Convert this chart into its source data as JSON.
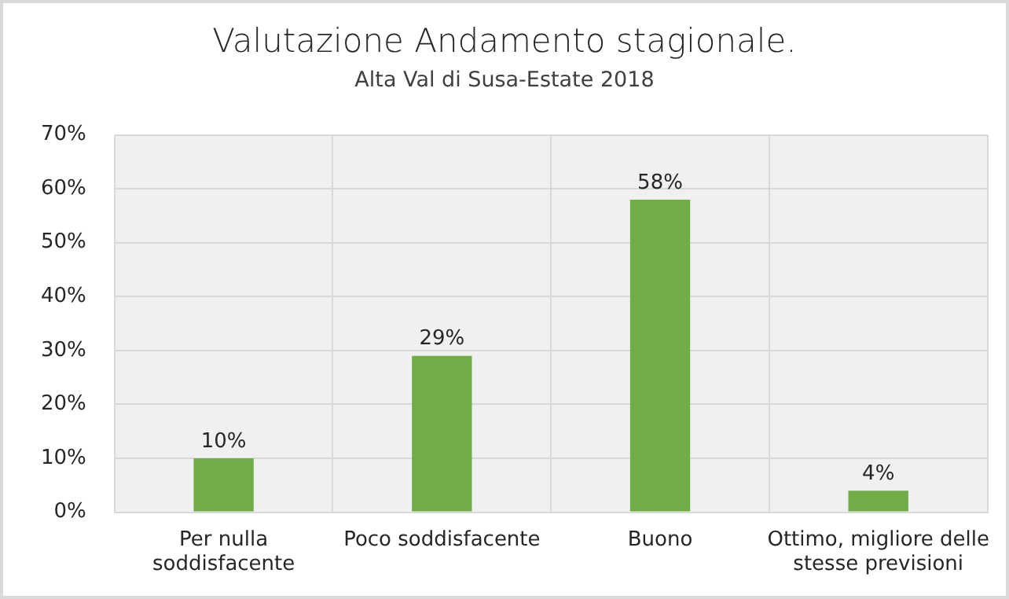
{
  "chart_data": {
    "type": "bar",
    "title": "Valutazione Andamento stagionale.",
    "subtitle": "Alta Val di Susa-Estate 2018",
    "categories": [
      "Per nulla soddisfacente",
      "Poco soddisfacente",
      "Buono",
      "Ottimo, migliore delle stesse previsioni"
    ],
    "values": [
      10,
      29,
      58,
      4
    ],
    "color": "#70ad47",
    "value_labels": [
      "10%",
      "29%",
      "58%",
      "4%"
    ],
    "ylim": [
      0,
      70
    ],
    "yticks": [
      {
        "value": 0,
        "label": "0%"
      },
      {
        "value": 10,
        "label": "10%"
      },
      {
        "value": 20,
        "label": "20%"
      },
      {
        "value": 30,
        "label": "30%"
      },
      {
        "value": 40,
        "label": "40%"
      },
      {
        "value": 50,
        "label": "50%"
      },
      {
        "value": 60,
        "label": "60%"
      },
      {
        "value": 70,
        "label": "70%"
      }
    ],
    "grid": true,
    "legend": false
  }
}
